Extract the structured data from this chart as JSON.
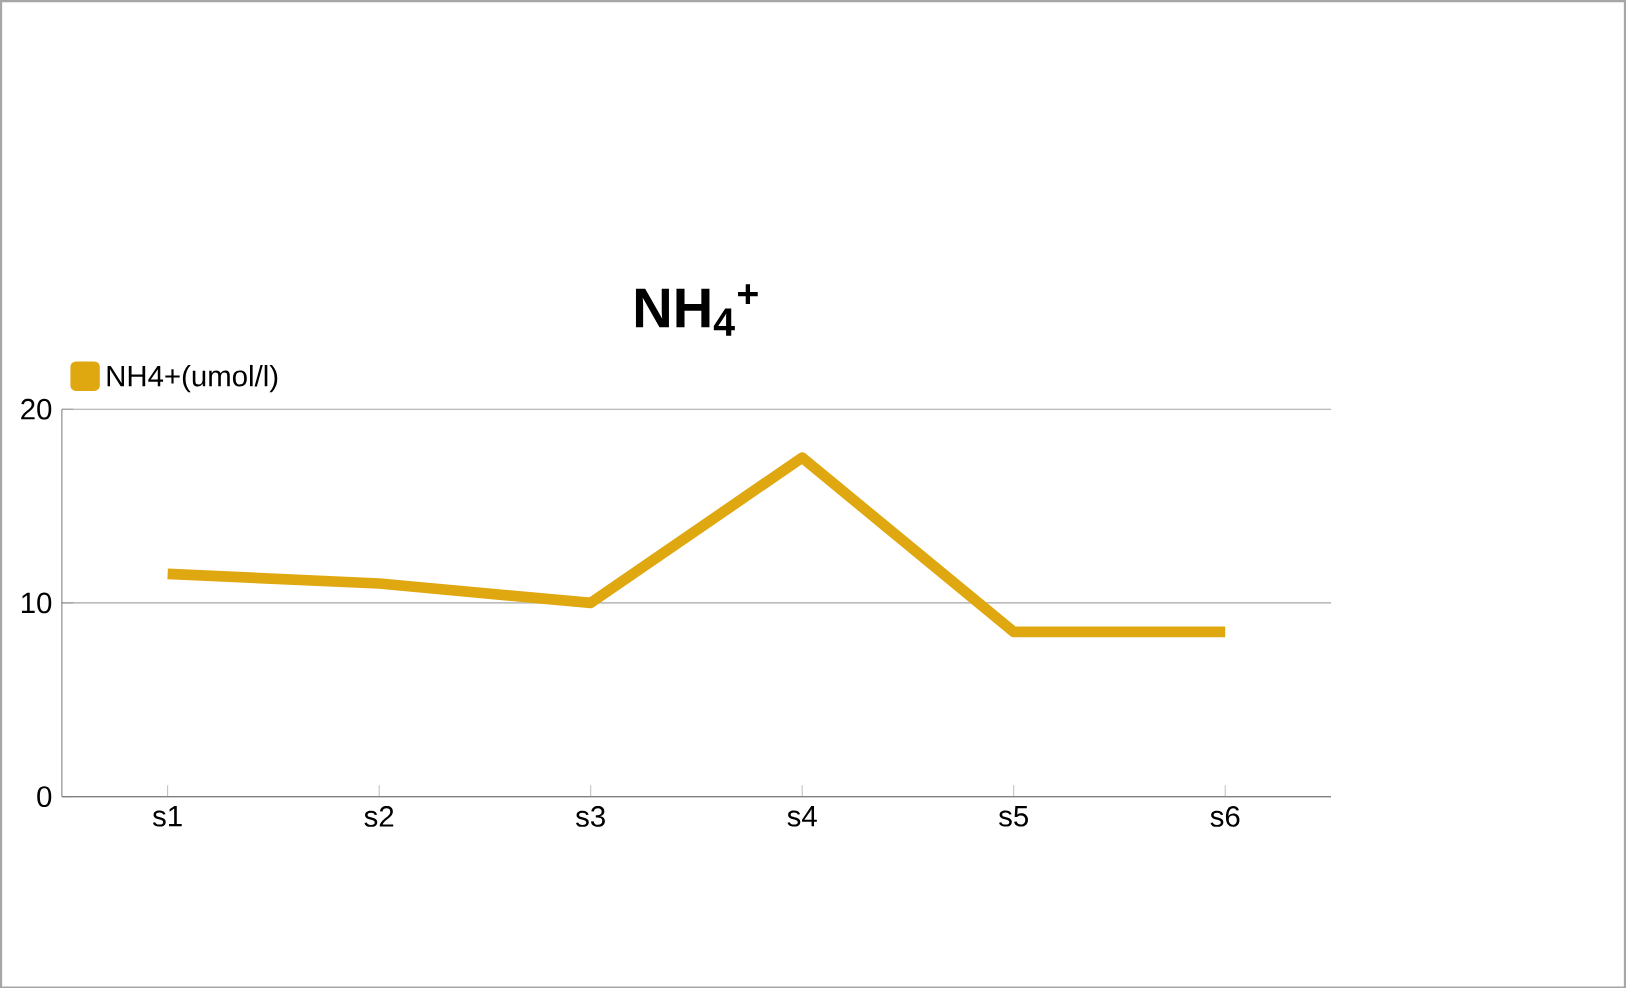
{
  "chart_data": {
    "type": "line",
    "title": "NH$_{4}$$^{+}$",
    "categories": [
      "s1",
      "s2",
      "s3",
      "s4",
      "s5",
      "s6"
    ],
    "series": [
      {
        "name": "NH4+(umol/l)",
        "color": "#e0a810",
        "values": [
          11.5,
          11,
          10,
          17.5,
          8.5,
          8.5
        ]
      }
    ],
    "ylim": [
      0,
      20
    ],
    "yticks": [
      0,
      10,
      20
    ],
    "grid": "y",
    "legend": "top left",
    "marker": "none",
    "line_style": "solid"
  }
}
